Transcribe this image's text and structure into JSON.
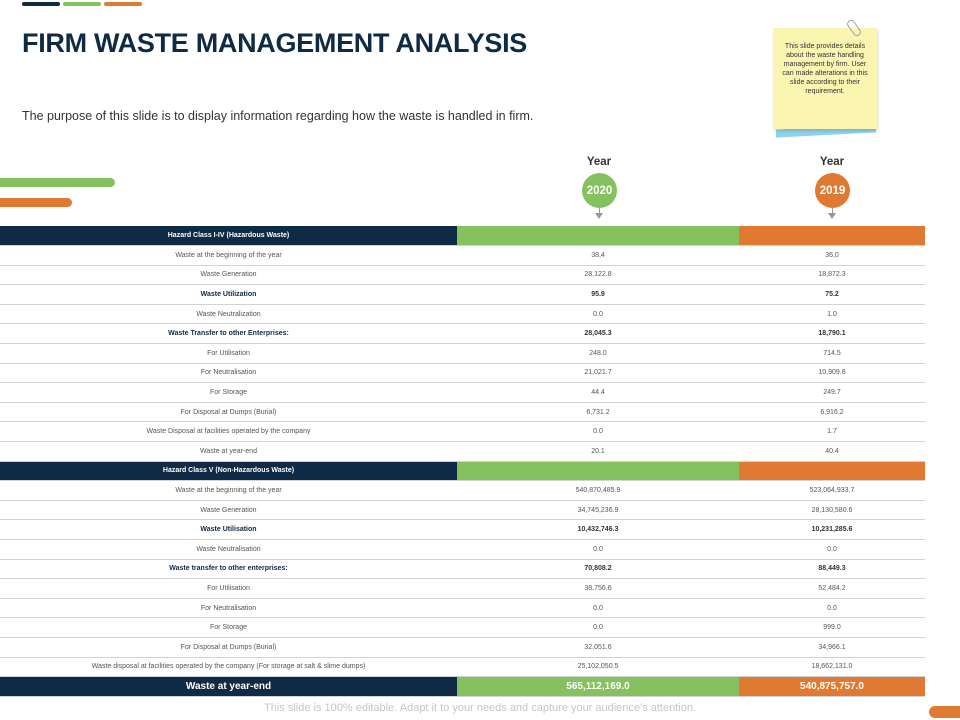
{
  "title": "FIRM WASTE MANAGEMENT ANALYSIS",
  "subtitle": "The purpose of this slide is to display information regarding  how the waste is handled in firm.",
  "note": "This slide provides details about the waste handling management by firm. User can made alterations in this slide according to their requirement.",
  "years": [
    {
      "label": "Year",
      "value": "2020",
      "color": "#86c160"
    },
    {
      "label": "Year",
      "value": "2019",
      "color": "#e07a33"
    }
  ],
  "table": {
    "section1": {
      "title": "Hazard Class I-IV (Hazardous Waste)",
      "rows": [
        {
          "label": "Waste at the beginning  of the year",
          "v2020": "38,4",
          "v2019": "36,0",
          "bold": false
        },
        {
          "label": "Waste Generation",
          "v2020": "28,122.8",
          "v2019": "18,872.3",
          "bold": false
        },
        {
          "label": "Waste Utilization",
          "v2020": "95.9",
          "v2019": "75.2",
          "bold": true
        },
        {
          "label": "Waste Neutralization",
          "v2020": "0.0",
          "v2019": "1.0",
          "bold": false
        },
        {
          "label": "Waste Transfer to other Enterprises:",
          "v2020": "28,045.3",
          "v2019": "18,790.1",
          "bold": true
        },
        {
          "label": "For Utilisation",
          "v2020": "248.0",
          "v2019": "714.5",
          "bold": false
        },
        {
          "label": "For Neutralisation",
          "v2020": "21,021.7",
          "v2019": "10,909.8",
          "bold": false
        },
        {
          "label": "For Storage",
          "v2020": "44.4",
          "v2019": "249.7",
          "bold": false
        },
        {
          "label": "For Disposal at Dumps  (Burial)",
          "v2020": "6,731.2",
          "v2019": "6,916.2",
          "bold": false
        },
        {
          "label": "Waste Disposal at facilities operated  by the company",
          "v2020": "0.0",
          "v2019": "1.7",
          "bold": false
        },
        {
          "label": "Waste at year-end",
          "v2020": "20.1",
          "v2019": "40.4",
          "bold": false
        }
      ]
    },
    "section2": {
      "title": "Hazard Class  V (Non-Hazardous Waste)",
      "rows": [
        {
          "label": "Waste at the beginning  of the year",
          "v2020": "540,870,485.9",
          "v2019": "523,064,933.7",
          "bold": false
        },
        {
          "label": "Waste Generation",
          "v2020": "34,745,236.9",
          "v2019": "28,130,580.6",
          "bold": false
        },
        {
          "label": "Waste Utilisation",
          "v2020": "10,432,746.3",
          "v2019": "10,231,285.6",
          "bold": true
        },
        {
          "label": "Waste Neutralisation",
          "v2020": "0.0",
          "v2019": "0.0",
          "bold": false
        },
        {
          "label": "Waste transfer to other enterprises:",
          "v2020": "70,808.2",
          "v2019": "88,449.3",
          "bold": true
        },
        {
          "label": "For Utilisation",
          "v2020": "38,756.6",
          "v2019": "52,484.2",
          "bold": false
        },
        {
          "label": "For Neutralisation",
          "v2020": "0.0",
          "v2019": "0.0",
          "bold": false
        },
        {
          "label": "For Storage",
          "v2020": "0.0",
          "v2019": "999.0",
          "bold": false
        },
        {
          "label": "For Disposal at Dumps (Burial)",
          "v2020": "32,051.6",
          "v2019": "34,966.1",
          "bold": false
        },
        {
          "label": "Waste disposal at facilities operated  by the company  (For storage at salt & slime dumps)",
          "v2020": "25,102,050.5",
          "v2019": "18,662,131.0",
          "bold": false
        }
      ]
    },
    "total": {
      "label": "Waste at year-end",
      "v2020": "565,112,169.0",
      "v2019": "540,875,757.0"
    }
  },
  "footer": "This slide is 100% editable. Adapt it to your needs and capture your audience's attention."
}
